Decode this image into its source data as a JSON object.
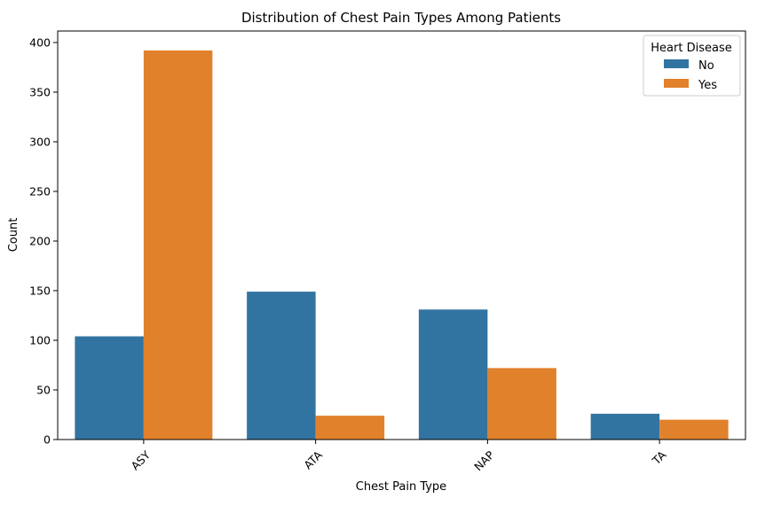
{
  "chart_data": {
    "type": "bar",
    "title": "Distribution of Chest Pain Types Among Patients",
    "xlabel": "Chest Pain Type",
    "ylabel": "Count",
    "categories": [
      "ASY",
      "ATA",
      "NAP",
      "TA"
    ],
    "series": [
      {
        "name": "No",
        "color": "#3274a1",
        "values": [
          104,
          149,
          131,
          26
        ]
      },
      {
        "name": "Yes",
        "color": "#e1812c",
        "values": [
          392,
          24,
          72,
          20
        ]
      }
    ],
    "ylim": [
      0,
      411.6
    ],
    "yticks": [
      0,
      50,
      100,
      150,
      200,
      250,
      300,
      350,
      400
    ],
    "grid": false,
    "legend": {
      "title": "Heart Disease",
      "placement": "top-right"
    }
  }
}
